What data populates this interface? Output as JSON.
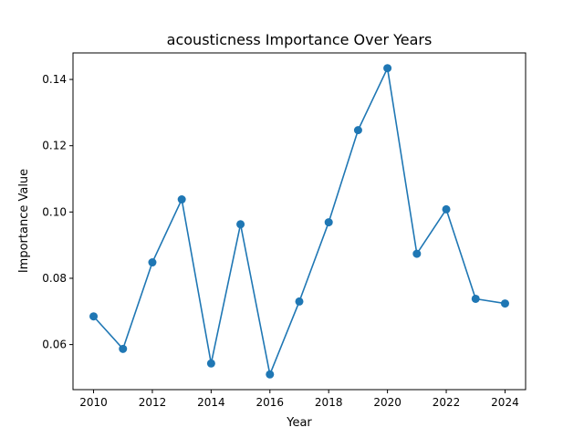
{
  "chart_data": {
    "type": "line",
    "title": "acousticness Importance Over Years",
    "xlabel": "Year",
    "ylabel": "Importance Value",
    "x": [
      2010,
      2011,
      2012,
      2013,
      2014,
      2015,
      2016,
      2017,
      2018,
      2019,
      2020,
      2021,
      2022,
      2023,
      2024
    ],
    "series": [
      {
        "values": [
          0.0685,
          0.0587,
          0.0848,
          0.1038,
          0.0543,
          0.0963,
          0.051,
          0.073,
          0.0969,
          0.1247,
          0.1434,
          0.0874,
          0.1008,
          0.0738,
          0.0724
        ],
        "color": "#1f77b4",
        "marker": "circle"
      }
    ],
    "xticks": [
      "2010",
      "2012",
      "2014",
      "2016",
      "2018",
      "2020",
      "2022",
      "2024"
    ],
    "yticks": [
      "0.06",
      "0.08",
      "0.10",
      "0.12",
      "0.14"
    ],
    "xlim": [
      2009.3,
      2024.7
    ],
    "ylim": [
      0.0464,
      0.148
    ],
    "grid": false,
    "legend": "none"
  }
}
